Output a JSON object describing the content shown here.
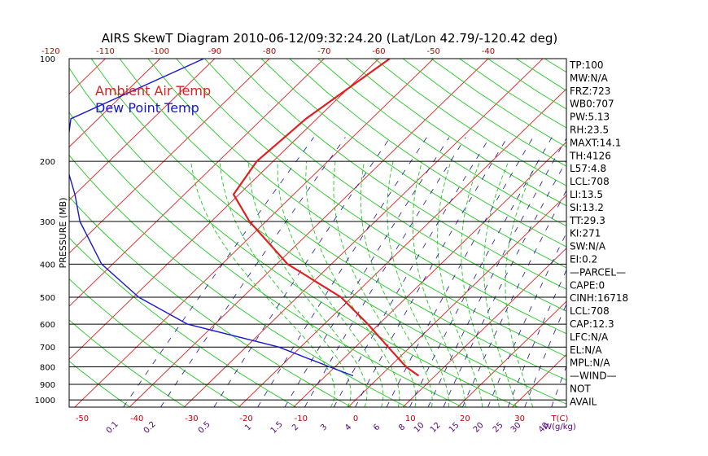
{
  "chart_data": {
    "type": "line",
    "title": "AIRS SkewT Diagram 2010-06-12/09:32:24.20 (Lat/Lon 42.79/-120.42 deg)",
    "ylabel": "PRESSURE (MB)",
    "y_scale": "log",
    "ylim": [
      100,
      1050
    ],
    "pressure_ticks": [
      100,
      200,
      300,
      400,
      500,
      600,
      700,
      800,
      900,
      1000
    ],
    "top_temp_ticks": [
      -120,
      -110,
      -100,
      -90,
      -80,
      -70,
      -60,
      -50,
      -40
    ],
    "bottom_temp_ticks": [
      -50,
      -40,
      -30,
      -20,
      -10,
      0,
      10,
      20,
      30
    ],
    "bottom_temp_unit": "T(C)",
    "mixing_ratio_ticks": [
      "0.1",
      "0.2",
      "0.5",
      "1",
      "1.5",
      "2",
      "3",
      "4",
      "6",
      "8",
      "10",
      "12",
      "15",
      "20",
      "25",
      "30",
      "40"
    ],
    "mixing_ratio_unit": "W(g/kg)",
    "grid": true,
    "legend": {
      "placement": "top-left",
      "entries": [
        {
          "label": "Ambient Air Temp",
          "color": "#e02020"
        },
        {
          "label": "Dew Point Temp",
          "color": "#1818d0"
        }
      ]
    },
    "series": [
      {
        "name": "Ambient Air Temp",
        "color": "#e02020",
        "points": [
          {
            "p": 100,
            "t": -58
          },
          {
            "p": 150,
            "t": -62
          },
          {
            "p": 200,
            "t": -63
          },
          {
            "p": 250,
            "t": -61
          },
          {
            "p": 300,
            "t": -53
          },
          {
            "p": 400,
            "t": -38
          },
          {
            "p": 500,
            "t": -22
          },
          {
            "p": 600,
            "t": -12
          },
          {
            "p": 700,
            "t": -4
          },
          {
            "p": 800,
            "t": 3
          },
          {
            "p": 850,
            "t": 7
          }
        ]
      },
      {
        "name": "Dew Point Temp",
        "color": "#1818d0",
        "points": [
          {
            "p": 100,
            "t": -92
          },
          {
            "p": 150,
            "t": -105
          },
          {
            "p": 200,
            "t": -98
          },
          {
            "p": 250,
            "t": -90
          },
          {
            "p": 300,
            "t": -84
          },
          {
            "p": 400,
            "t": -72
          },
          {
            "p": 500,
            "t": -59
          },
          {
            "p": 600,
            "t": -45
          },
          {
            "p": 700,
            "t": -24
          },
          {
            "p": 800,
            "t": -11
          },
          {
            "p": 850,
            "t": -5
          }
        ]
      }
    ],
    "indices": [
      "TP:100",
      "MW:N/A",
      "FRZ:723",
      "WB0:707",
      "PW:5.13",
      "RH:23.5",
      "MAXT:14.1",
      "TH:4126",
      "L57:4.8",
      "LCL:708",
      "LI:13.5",
      "SI:13.2",
      "TT:29.3",
      "KI:271",
      "SW:N/A",
      "EI:0.2",
      "—PARCEL—",
      "CAPE:0",
      "CINH:16718",
      "LCL:708",
      "CAP:12.3",
      "LFC:N/A",
      "EL:N/A",
      "MPL:N/A",
      "—WIND—",
      "NOT",
      "AVAIL"
    ],
    "colors": {
      "isotherm": "#e02020",
      "dry_adiabat": "#20c820",
      "moist_adiabat": "#20c820",
      "mixing_ratio": "#2010a0",
      "tick_label": "#c00000",
      "mixing_label": "#500080"
    }
  }
}
